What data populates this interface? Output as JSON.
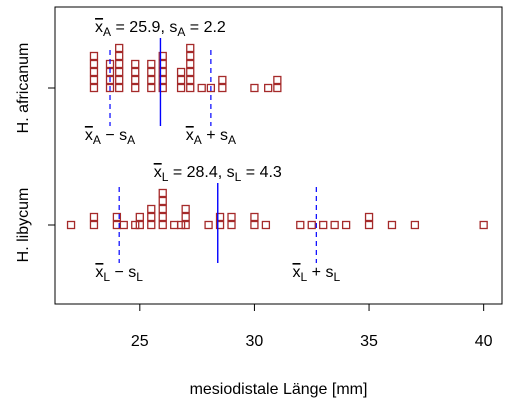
{
  "chart_data": {
    "type": "scatter",
    "plot_style": "stacked dot plot (stripchart) with mean and mean ± SD markers",
    "xlabel": "mesiodistale Länge [mm]",
    "xlim": [
      21.3,
      40.8
    ],
    "x_ticks": [
      25,
      30,
      35,
      40
    ],
    "grid": false,
    "colors": {
      "points": "#a52a2a",
      "mean_line": "#0000ff",
      "sd_line": "#0000ff",
      "axes": "#000000"
    },
    "series": [
      {
        "name": "H. africanum",
        "mean": 25.9,
        "sd": 2.2,
        "stats_label": {
          "mean_symbol": "x",
          "mean_sub": "A",
          "mean_value": "25.9",
          "sd_symbol": "s",
          "sd_sub": "A",
          "sd_value": "2.2"
        },
        "lower_label": {
          "x": "x",
          "x_sub": "A",
          "op": "−",
          "s": "s",
          "s_sub": "A"
        },
        "upper_label": {
          "x": "x",
          "x_sub": "A",
          "op": "+",
          "s": "s",
          "s_sub": "A"
        },
        "points": [
          {
            "x": 23.0,
            "count": 5
          },
          {
            "x": 23.7,
            "count": 4
          },
          {
            "x": 24.1,
            "count": 6
          },
          {
            "x": 24.8,
            "count": 4
          },
          {
            "x": 25.5,
            "count": 4
          },
          {
            "x": 26.0,
            "count": 5
          },
          {
            "x": 26.8,
            "count": 3
          },
          {
            "x": 27.2,
            "count": 6
          },
          {
            "x": 27.7,
            "count": 1
          },
          {
            "x": 28.1,
            "count": 1
          },
          {
            "x": 28.6,
            "count": 2
          },
          {
            "x": 30.0,
            "count": 1
          },
          {
            "x": 30.6,
            "count": 1
          },
          {
            "x": 31.0,
            "count": 2
          }
        ]
      },
      {
        "name": "H. libycum",
        "mean": 28.4,
        "sd": 4.3,
        "stats_label": {
          "mean_symbol": "x",
          "mean_sub": "L",
          "mean_value": "28.4",
          "sd_symbol": "s",
          "sd_sub": "L",
          "sd_value": "4.3"
        },
        "lower_label": {
          "x": "x",
          "x_sub": "L",
          "op": "−",
          "s": "s",
          "s_sub": "L"
        },
        "upper_label": {
          "x": "x",
          "x_sub": "L",
          "op": "+",
          "s": "s",
          "s_sub": "L"
        },
        "points": [
          {
            "x": 22.0,
            "count": 1
          },
          {
            "x": 23.0,
            "count": 2
          },
          {
            "x": 24.0,
            "count": 2
          },
          {
            "x": 24.3,
            "count": 1
          },
          {
            "x": 24.8,
            "count": 1
          },
          {
            "x": 25.0,
            "count": 2
          },
          {
            "x": 25.5,
            "count": 3
          },
          {
            "x": 26.0,
            "count": 5
          },
          {
            "x": 26.5,
            "count": 1
          },
          {
            "x": 26.8,
            "count": 1
          },
          {
            "x": 27.0,
            "count": 3
          },
          {
            "x": 28.0,
            "count": 1
          },
          {
            "x": 28.5,
            "count": 2
          },
          {
            "x": 29.0,
            "count": 2
          },
          {
            "x": 30.0,
            "count": 2
          },
          {
            "x": 30.5,
            "count": 1
          },
          {
            "x": 32.0,
            "count": 1
          },
          {
            "x": 32.5,
            "count": 1
          },
          {
            "x": 33.0,
            "count": 1
          },
          {
            "x": 33.5,
            "count": 1
          },
          {
            "x": 34.0,
            "count": 1
          },
          {
            "x": 35.0,
            "count": 2
          },
          {
            "x": 36.0,
            "count": 1
          },
          {
            "x": 37.0,
            "count": 1
          },
          {
            "x": 40.0,
            "count": 1
          }
        ]
      }
    ]
  }
}
